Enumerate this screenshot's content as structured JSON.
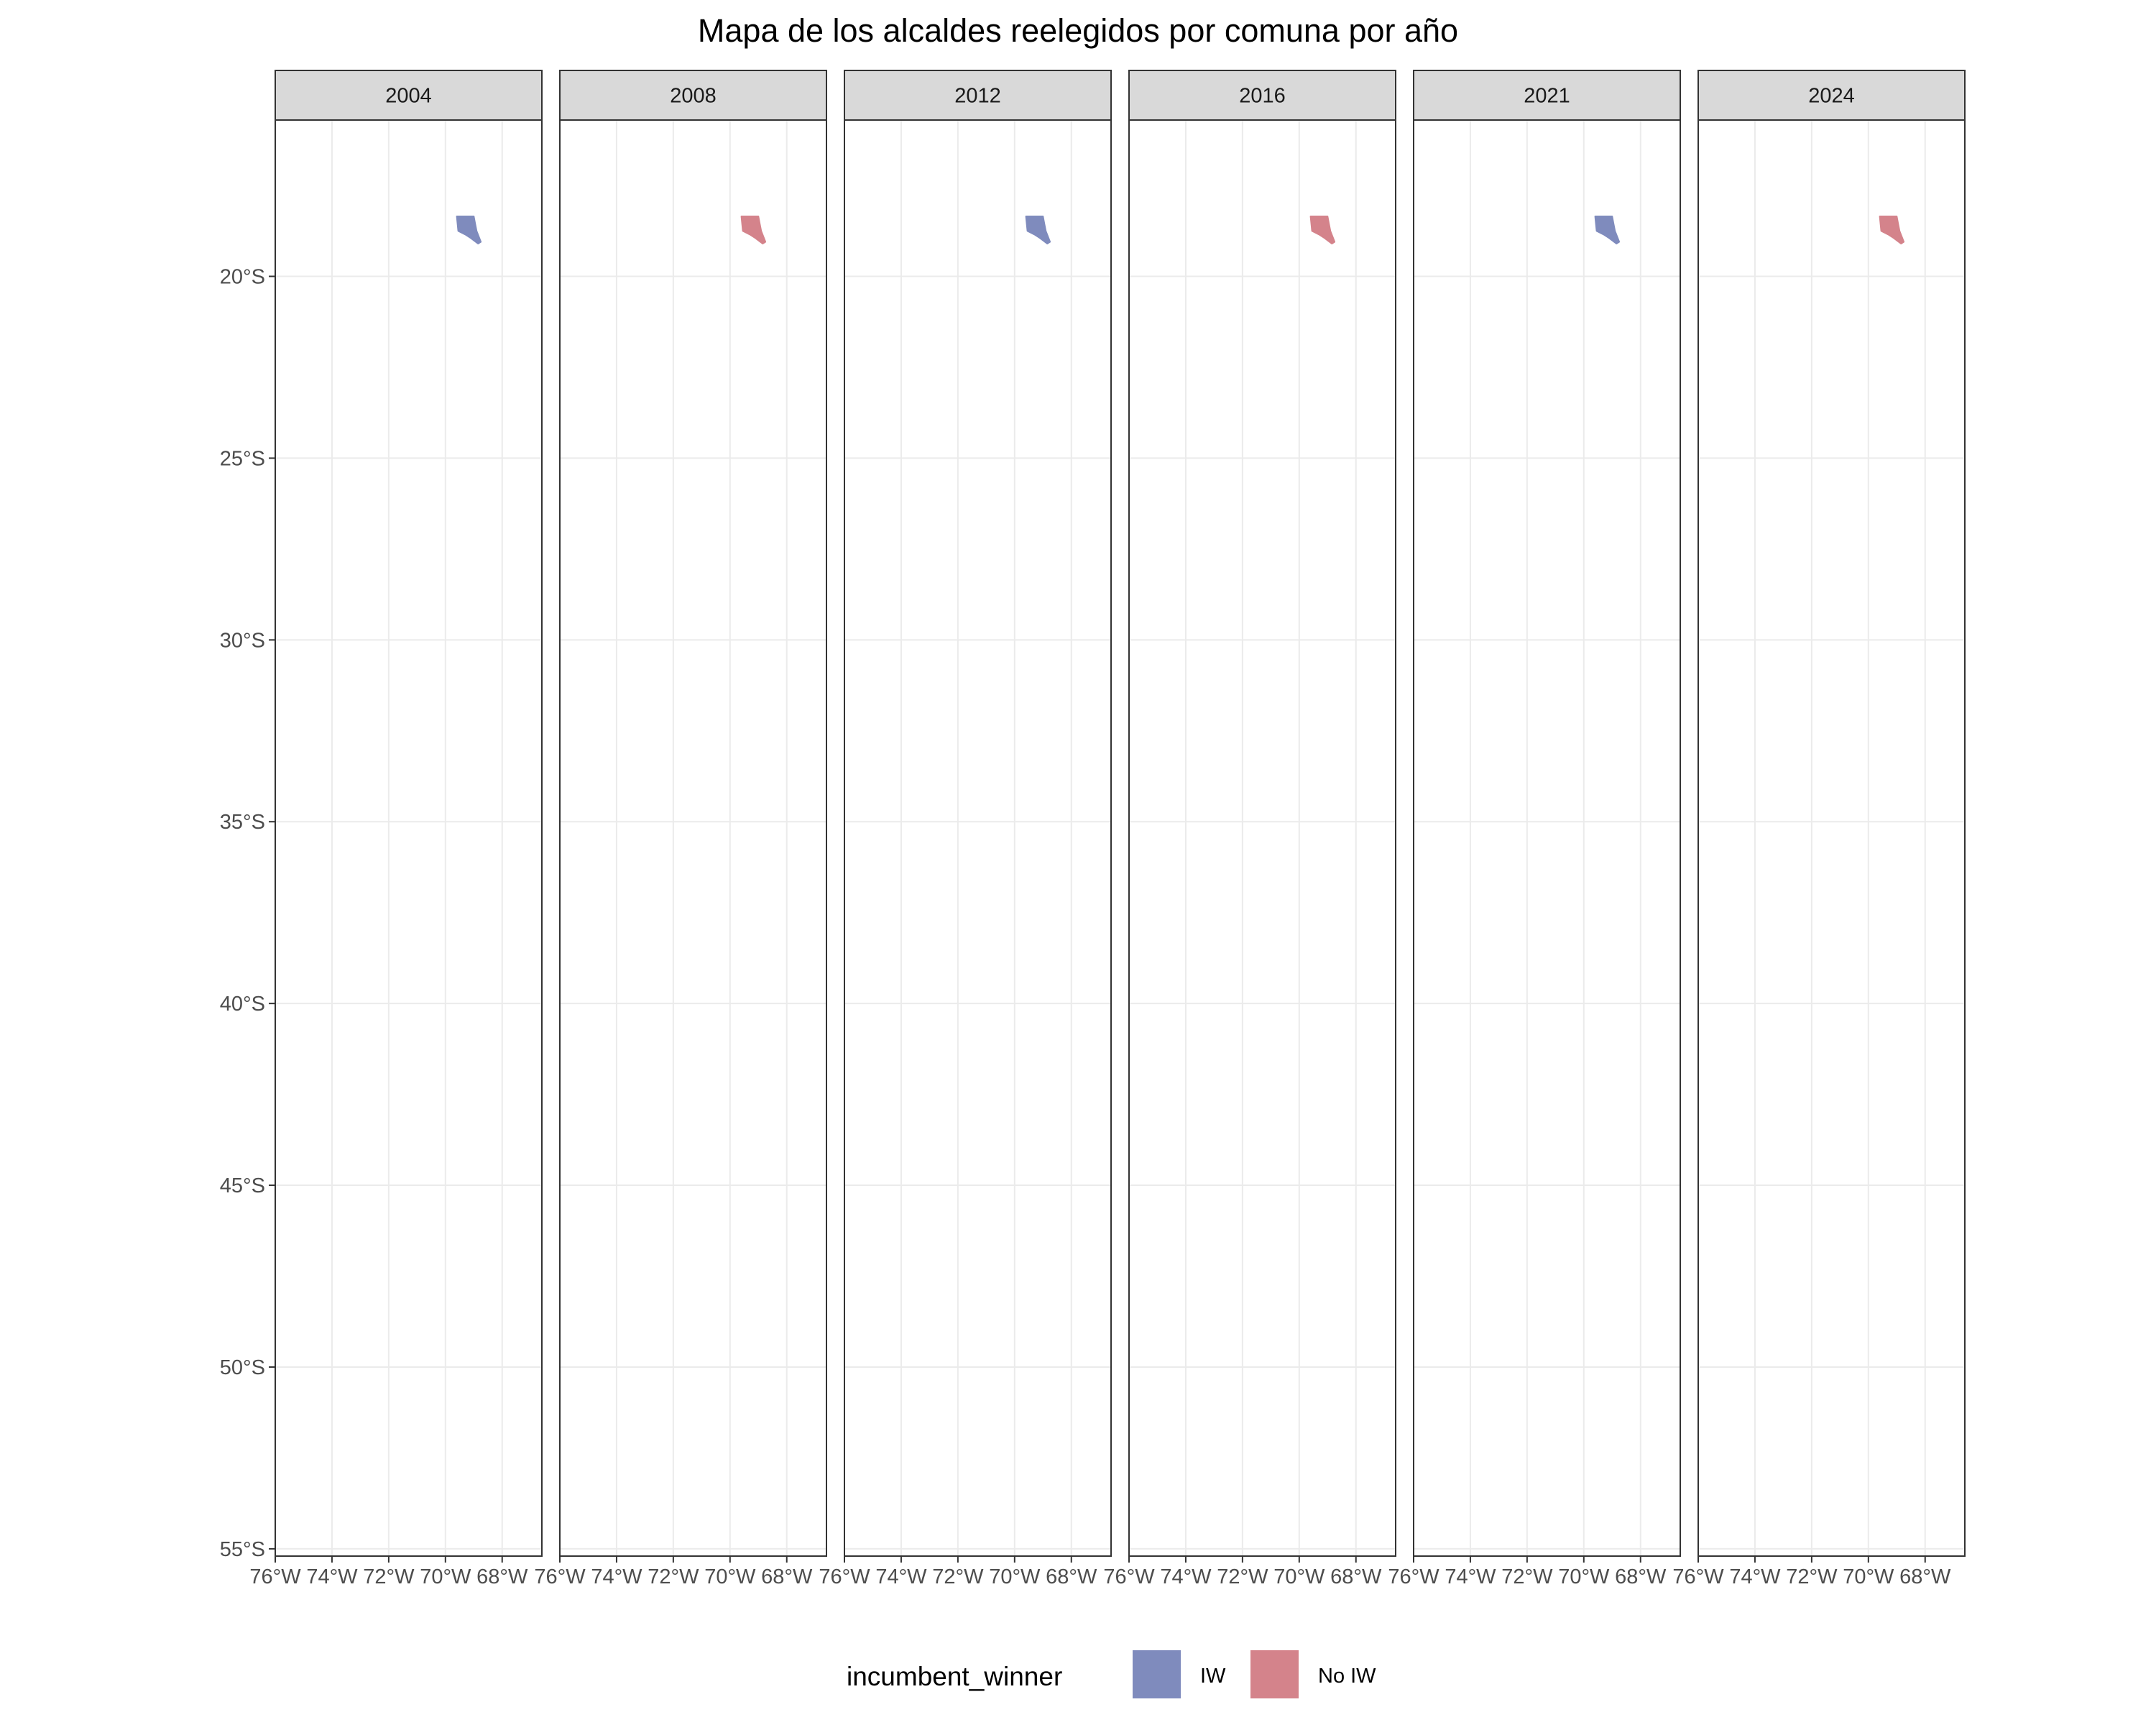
{
  "chart_data": {
    "type": "map",
    "title": "Mapa de los alcaldes reelegidos por comuna por año",
    "facets": [
      {
        "label": "2004",
        "incumbent_winner": "IW"
      },
      {
        "label": "2008",
        "incumbent_winner": "No IW"
      },
      {
        "label": "2012",
        "incumbent_winner": "IW"
      },
      {
        "label": "2016",
        "incumbent_winner": "No IW"
      },
      {
        "label": "2021",
        "incumbent_winner": "IW"
      },
      {
        "label": "2024",
        "incumbent_winner": "No IW"
      }
    ],
    "x_ticks": [
      "76°W",
      "74°W",
      "72°W",
      "70°W",
      "68°W"
    ],
    "x_tick_values": [
      -76,
      -74,
      -72,
      -70,
      -68
    ],
    "xlim": [
      -76,
      -66.6
    ],
    "y_ticks": [
      "20°S",
      "25°S",
      "30°S",
      "35°S",
      "40°S",
      "45°S",
      "50°S",
      "55°S"
    ],
    "y_tick_values": [
      -20,
      -25,
      -30,
      -35,
      -40,
      -45,
      -50,
      -55
    ],
    "ylim": [
      -55.2,
      -15.7
    ],
    "region": {
      "lon": [
        -69.6,
        -69.0,
        -68.95,
        -68.9,
        -68.75,
        -68.85,
        -69.1,
        -69.3,
        -69.55,
        -69.6
      ],
      "lat": [
        -18.35,
        -18.35,
        -18.55,
        -18.75,
        -19.05,
        -19.1,
        -18.95,
        -18.85,
        -18.75,
        -18.35
      ]
    },
    "grid": true,
    "legend": {
      "title": "incumbent_winner",
      "position": "bottom",
      "items": [
        {
          "label": "IW",
          "color": "#7f8bbd"
        },
        {
          "label": "No IW",
          "color": "#d4838b"
        }
      ]
    }
  }
}
